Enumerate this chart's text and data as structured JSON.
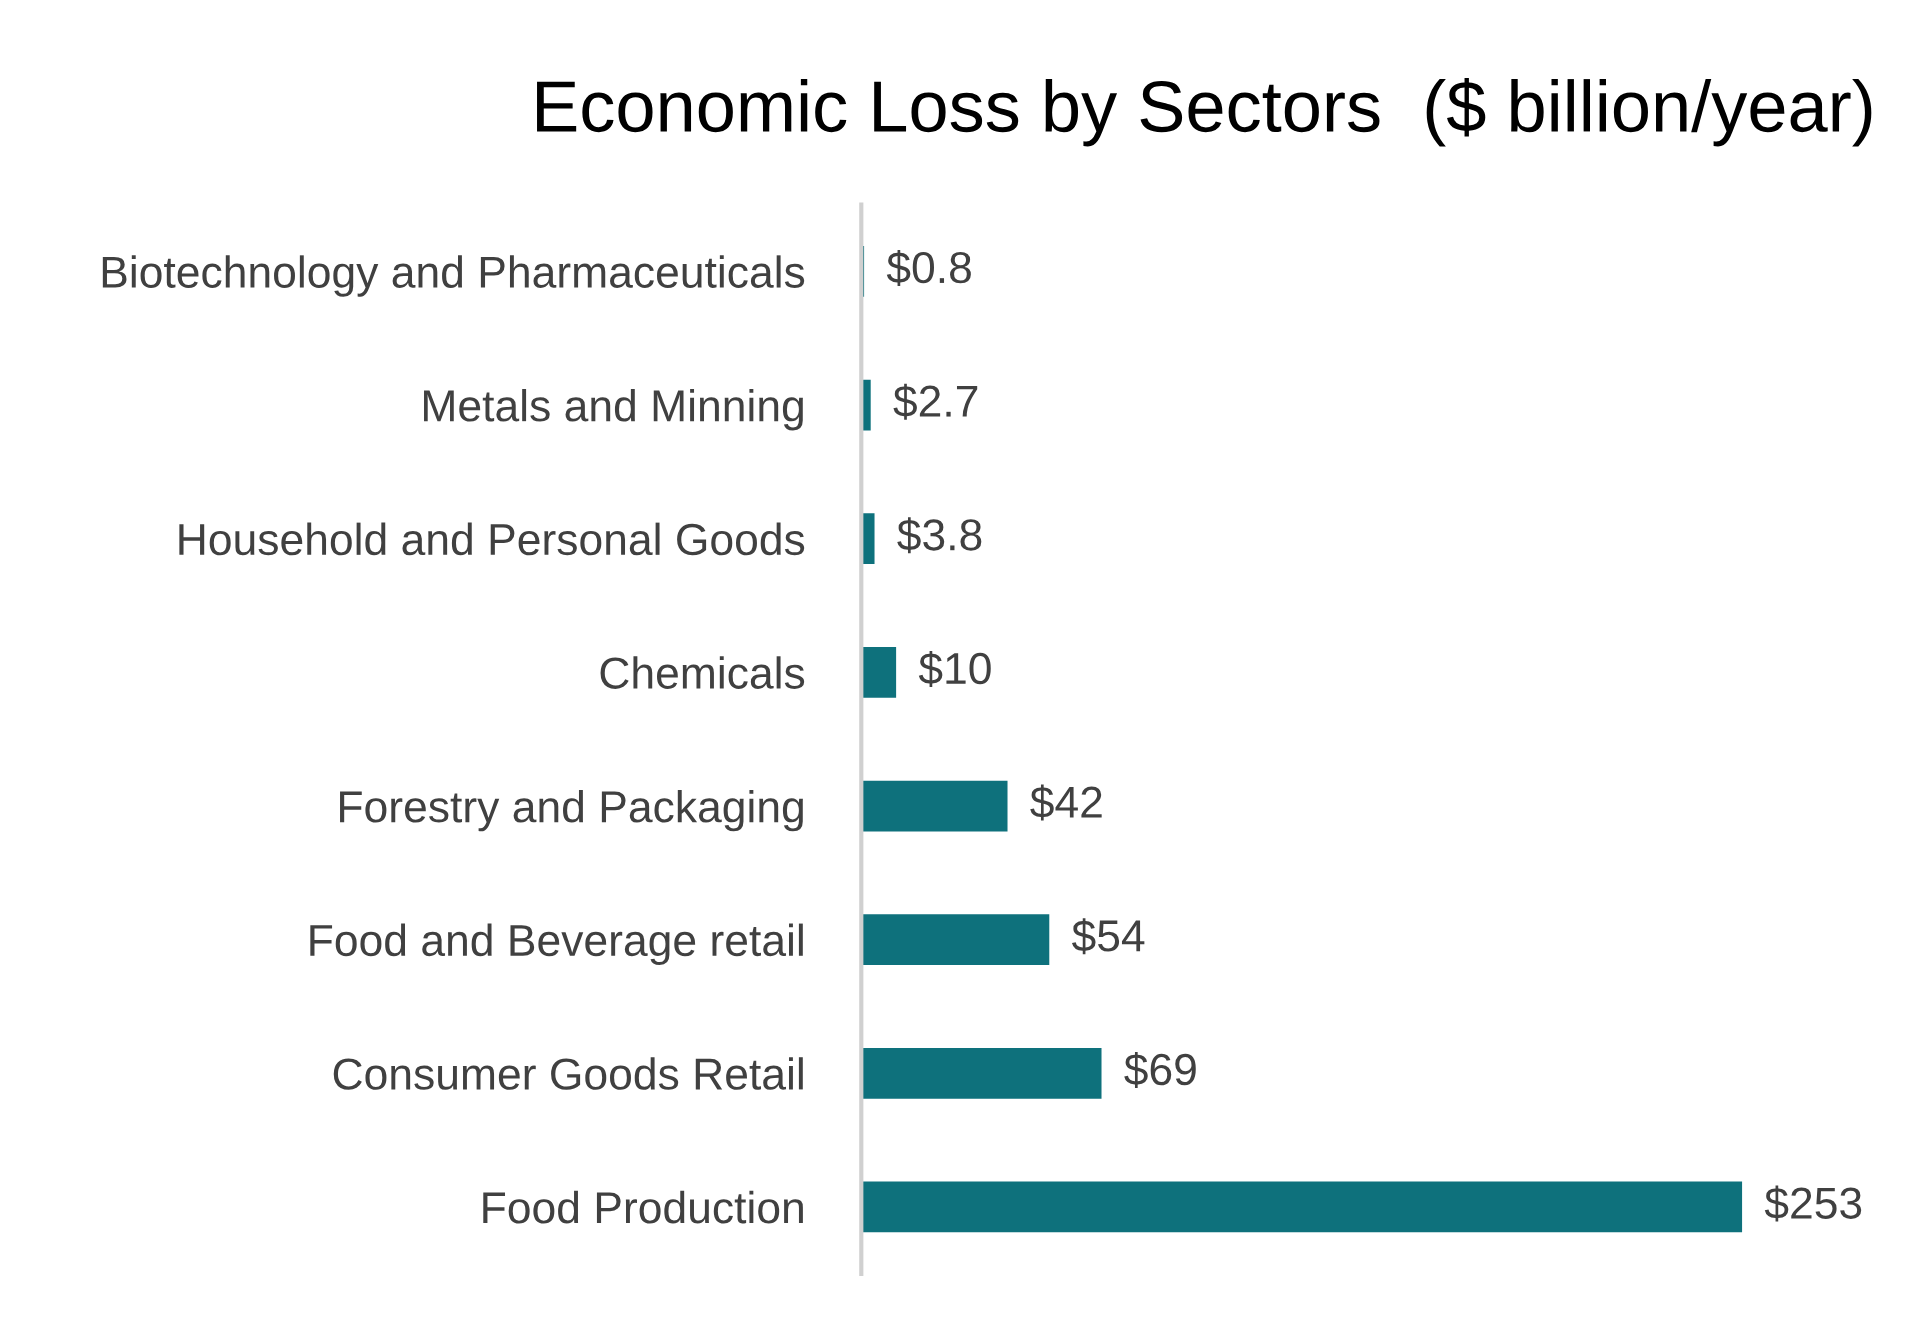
{
  "chart_data": {
    "type": "bar",
    "orientation": "horizontal",
    "title": "Economic Loss by Sectors  ($ billion/year)",
    "categories": [
      "Biotechnology and Pharmaceuticals",
      "Metals and Minning",
      "Household and Personal Goods",
      "Chemicals",
      "Forestry and Packaging",
      "Food and Beverage retail",
      "Consumer Goods Retail",
      "Food Production"
    ],
    "values": [
      0.8,
      2.7,
      3.8,
      10,
      42,
      54,
      69,
      253
    ],
    "value_labels": [
      "$0.8",
      "$2.7",
      "$3.8",
      "$10",
      "$42",
      "$54",
      "$69",
      "$253"
    ],
    "color": "#0e717c",
    "grid": false,
    "legend": false
  }
}
